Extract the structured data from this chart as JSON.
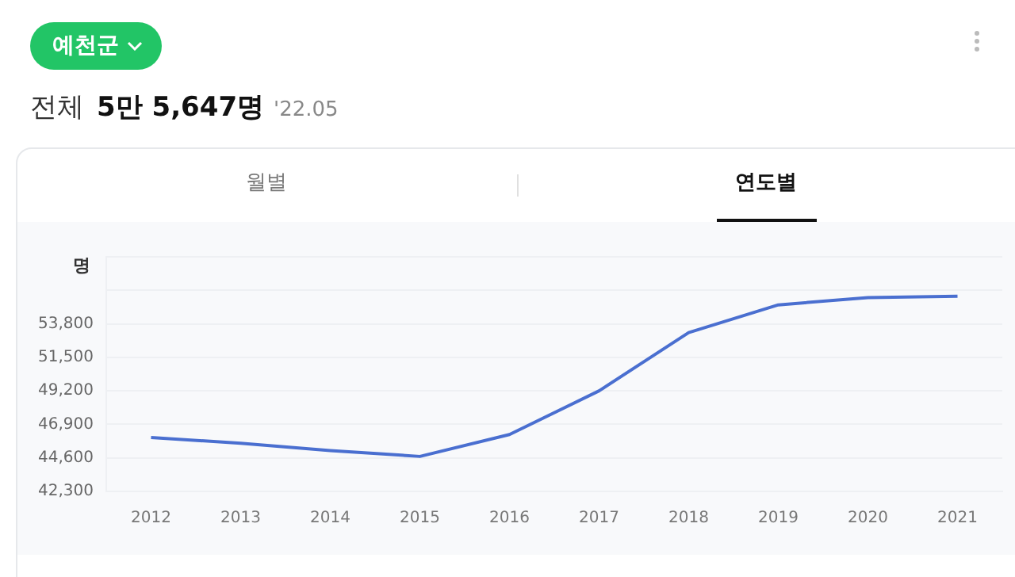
{
  "chart_data": {
    "type": "line",
    "title": "예천군",
    "ylabel": "명",
    "annotations": [
      "전체",
      "5만 5,647명",
      "'22.05",
      "월별",
      "연도별"
    ],
    "categories": [
      "2012",
      "2013",
      "2014",
      "2015",
      "2016",
      "2017",
      "2018",
      "2019",
      "2020",
      "2021"
    ],
    "series": [
      {
        "color": "#4a6fd0",
        "values": [
          46000,
          45600,
          45100,
          44700,
          46200,
          49200,
          53200,
          55100,
          55600,
          55700
        ]
      }
    ],
    "ylim": [
      42300,
      58400
    ],
    "yticks": [
      {
        "value": 42300,
        "label": "42,300"
      },
      {
        "value": 44600,
        "label": "44,600"
      },
      {
        "value": 46900,
        "label": "46,900"
      },
      {
        "value": 49200,
        "label": "49,200"
      },
      {
        "value": 51500,
        "label": "51,500"
      },
      {
        "value": 53800,
        "label": "53,800"
      },
      {
        "value": 56100,
        "label": null
      },
      {
        "value": 58400,
        "label": null
      }
    ],
    "grid": "y",
    "marker": "none",
    "line_style": "solid",
    "legend": false
  }
}
